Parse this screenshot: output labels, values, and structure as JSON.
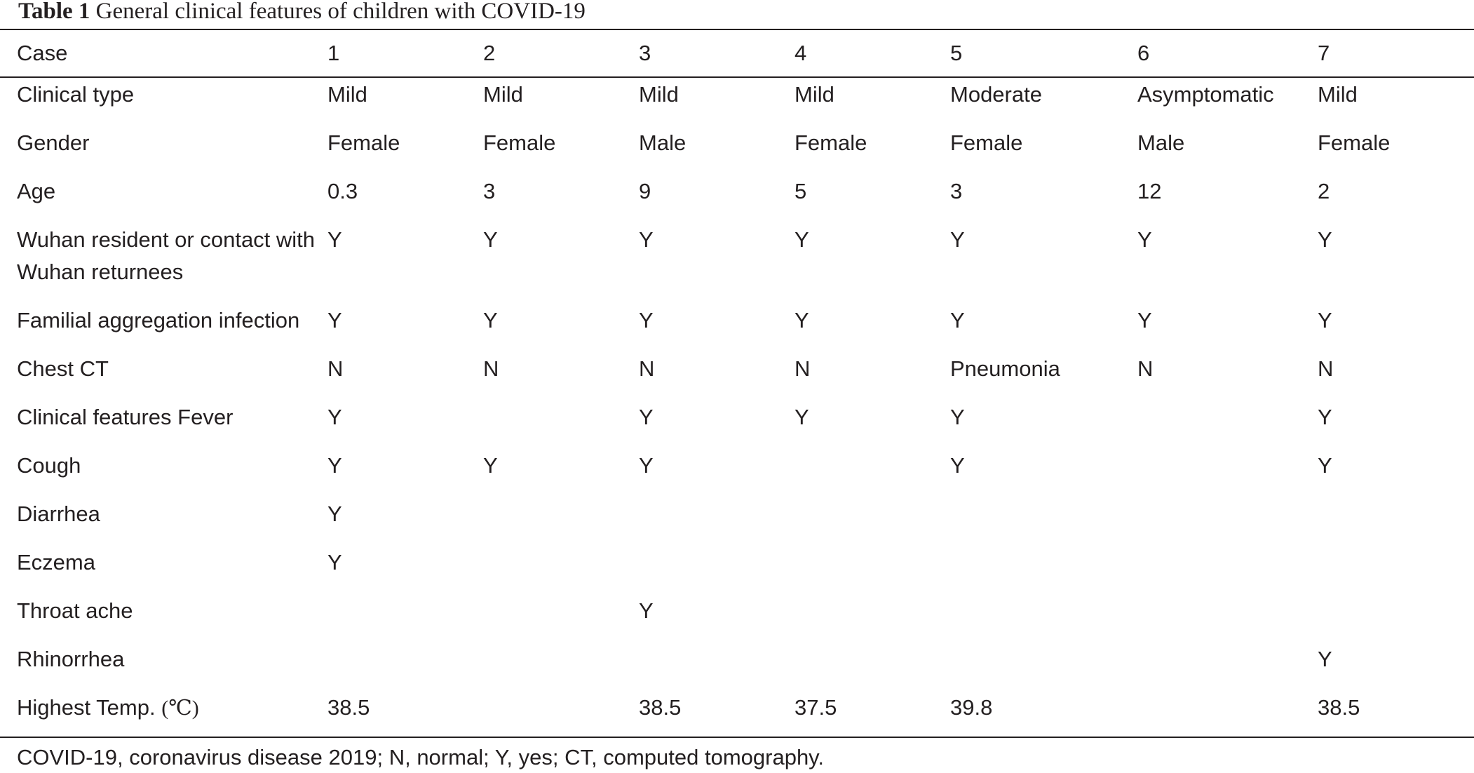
{
  "caption": {
    "label": "Table 1",
    "title": "General clinical features of children with COVID-19"
  },
  "header": [
    "Case",
    "1",
    "2",
    "3",
    "4",
    "5",
    "6",
    "7"
  ],
  "rows": [
    {
      "label": "Clinical type",
      "values": [
        "Mild",
        "Mild",
        "Mild",
        "Mild",
        "Moderate",
        "Asymptomatic",
        "Mild"
      ]
    },
    {
      "label": "Gender",
      "values": [
        "Female",
        "Female",
        "Male",
        "Female",
        "Female",
        "Male",
        "Female"
      ]
    },
    {
      "label": "Age",
      "values": [
        "0.3",
        "3",
        "9",
        "5",
        "3",
        "12",
        "2"
      ]
    },
    {
      "label": "Wuhan resident or contact with Wuhan returnees",
      "values": [
        "Y",
        "Y",
        "Y",
        "Y",
        "Y",
        "Y",
        "Y"
      ]
    },
    {
      "label": "Familial aggregation infection",
      "values": [
        "Y",
        "Y",
        "Y",
        "Y",
        "Y",
        "Y",
        "Y"
      ]
    },
    {
      "label": "Chest CT",
      "values": [
        "N",
        "N",
        "N",
        "N",
        "Pneumonia",
        "N",
        "N"
      ]
    },
    {
      "label": "Clinical features Fever",
      "values": [
        "Y",
        "",
        "Y",
        "Y",
        "Y",
        "",
        "Y"
      ]
    },
    {
      "label": "Cough",
      "values": [
        "Y",
        "Y",
        "Y",
        "",
        "Y",
        "",
        "Y"
      ]
    },
    {
      "label": "Diarrhea",
      "values": [
        "Y",
        "",
        "",
        "",
        "",
        "",
        ""
      ]
    },
    {
      "label": "Eczema",
      "values": [
        "Y",
        "",
        "",
        "",
        "",
        "",
        ""
      ]
    },
    {
      "label": "Throat ache",
      "values": [
        "",
        "",
        "Y",
        "",
        "",
        "",
        ""
      ]
    },
    {
      "label": "Rhinorrhea",
      "values": [
        "",
        "",
        "",
        "",
        "",
        "",
        "Y"
      ]
    },
    {
      "label": "Highest Temp.",
      "label_unit": "(℃)",
      "values": [
        "38.5",
        "",
        "38.5",
        "37.5",
        "39.8",
        "",
        "38.5"
      ]
    }
  ],
  "footnote": "COVID-19, coronavirus disease 2019; N, normal; Y, yes; CT, computed tomography."
}
